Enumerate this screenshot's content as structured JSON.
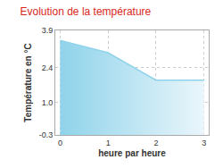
{
  "chart_data": {
    "type": "area",
    "title": "Evolution de la température",
    "x_label": "heure par heure",
    "y_label": "Température en °C",
    "x": [
      0,
      1,
      2,
      3
    ],
    "values": [
      3.5,
      3.0,
      1.9,
      1.9
    ],
    "color": "#8fd3ea",
    "xlim": [
      -0.1,
      3.1
    ],
    "xticks": [
      0,
      1,
      2,
      3
    ],
    "ylim": [
      -0.3,
      3.9
    ],
    "yticks": [
      -0.3,
      {
        "value": 1,
        "label": "1.0"
      },
      2.4,
      3.9
    ],
    "grid": true
  }
}
